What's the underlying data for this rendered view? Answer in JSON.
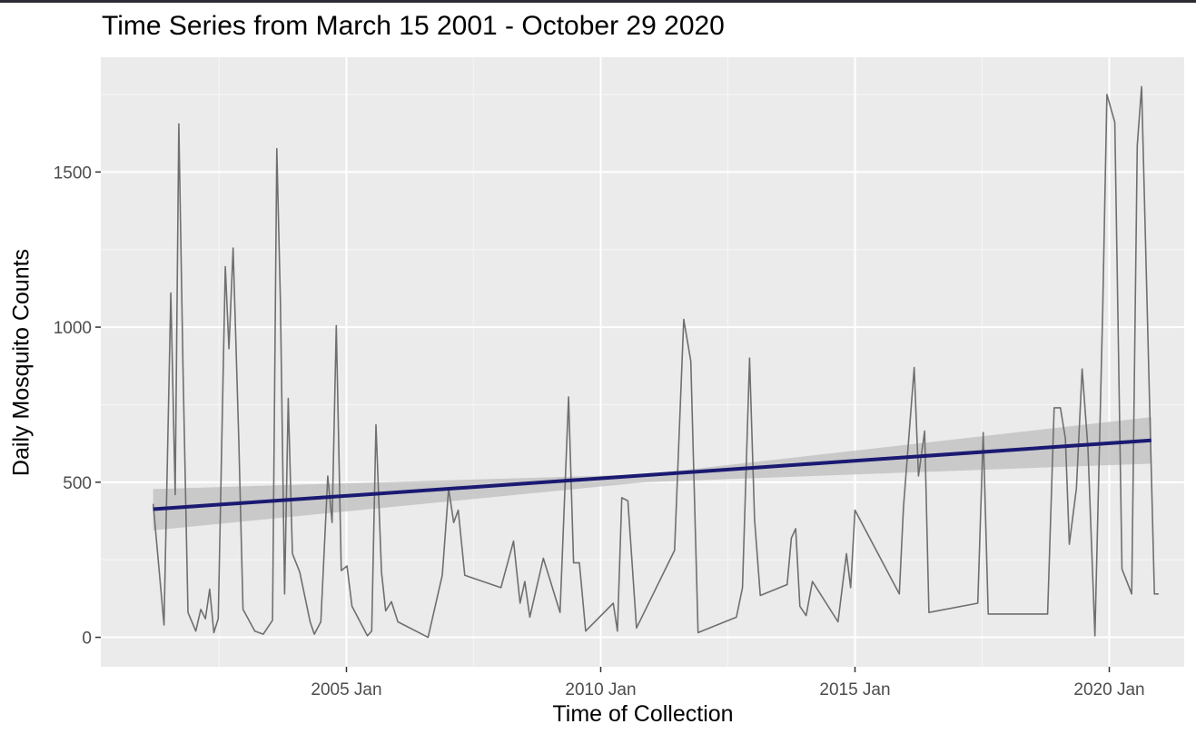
{
  "chart_data": {
    "type": "line",
    "title": "Time Series from March 15 2001 - October 29 2020",
    "xlabel": "Time of Collection",
    "ylabel": "Daily Mosquito Counts",
    "x_axis_type": "date",
    "x_range": [
      "2000-03-04",
      "2021-06-22"
    ],
    "ylim": [
      -95,
      1870
    ],
    "x_ticks": [
      {
        "date": "2005-01-01",
        "label": "2005 Jan"
      },
      {
        "date": "2010-01-01",
        "label": "2010 Jan"
      },
      {
        "date": "2015-01-01",
        "label": "2015 Jan"
      },
      {
        "date": "2020-01-01",
        "label": "2020 Jan"
      }
    ],
    "x_minor_ticks": [
      "2002-07-01",
      "2007-07-01",
      "2012-07-01",
      "2017-07-01"
    ],
    "y_ticks": [
      0,
      500,
      1000,
      1500
    ],
    "y_minor_ticks": [
      250,
      750,
      1250,
      1750
    ],
    "grid": true,
    "background": "#ebebeb",
    "series": [
      {
        "style": "raw",
        "color": "#6f6f6f",
        "points": [
          [
            "2001-03-15",
            430
          ],
          [
            "2001-06-01",
            40
          ],
          [
            "2001-07-20",
            1110
          ],
          [
            "2001-08-20",
            460
          ],
          [
            "2001-09-15",
            1655
          ],
          [
            "2001-10-15",
            870
          ],
          [
            "2001-11-20",
            80
          ],
          [
            "2002-01-15",
            20
          ],
          [
            "2002-02-20",
            90
          ],
          [
            "2002-03-25",
            60
          ],
          [
            "2002-04-25",
            155
          ],
          [
            "2002-05-25",
            15
          ],
          [
            "2002-06-25",
            60
          ],
          [
            "2002-08-15",
            1195
          ],
          [
            "2002-09-10",
            930
          ],
          [
            "2002-10-10",
            1255
          ],
          [
            "2002-11-20",
            630
          ],
          [
            "2002-12-20",
            90
          ],
          [
            "2003-03-15",
            20
          ],
          [
            "2003-05-15",
            10
          ],
          [
            "2003-07-20",
            55
          ],
          [
            "2003-08-20",
            1575
          ],
          [
            "2003-09-15",
            1080
          ],
          [
            "2003-10-15",
            140
          ],
          [
            "2003-11-10",
            770
          ],
          [
            "2003-12-10",
            270
          ],
          [
            "2004-02-01",
            210
          ],
          [
            "2004-04-15",
            50
          ],
          [
            "2004-05-15",
            10
          ],
          [
            "2004-07-01",
            50
          ],
          [
            "2004-08-20",
            520
          ],
          [
            "2004-09-20",
            370
          ],
          [
            "2004-10-20",
            1005
          ],
          [
            "2004-11-25",
            215
          ],
          [
            "2005-01-05",
            230
          ],
          [
            "2005-02-10",
            100
          ],
          [
            "2005-06-01",
            5
          ],
          [
            "2005-07-01",
            20
          ],
          [
            "2005-08-01",
            685
          ],
          [
            "2005-09-10",
            210
          ],
          [
            "2005-10-10",
            85
          ],
          [
            "2005-11-20",
            115
          ],
          [
            "2006-01-05",
            50
          ],
          [
            "2006-08-10",
            0
          ],
          [
            "2006-11-20",
            200
          ],
          [
            "2007-01-05",
            480
          ],
          [
            "2007-02-10",
            370
          ],
          [
            "2007-03-15",
            410
          ],
          [
            "2007-05-01",
            200
          ],
          [
            "2008-01-15",
            160
          ],
          [
            "2008-04-15",
            310
          ],
          [
            "2008-06-01",
            110
          ],
          [
            "2008-07-05",
            180
          ],
          [
            "2008-08-10",
            65
          ],
          [
            "2008-11-15",
            255
          ],
          [
            "2009-03-15",
            80
          ],
          [
            "2009-05-15",
            775
          ],
          [
            "2009-06-20",
            240
          ],
          [
            "2009-08-01",
            240
          ],
          [
            "2009-09-15",
            20
          ],
          [
            "2010-04-01",
            110
          ],
          [
            "2010-05-01",
            20
          ],
          [
            "2010-06-01",
            450
          ],
          [
            "2010-07-15",
            440
          ],
          [
            "2010-09-15",
            30
          ],
          [
            "2011-06-15",
            280
          ],
          [
            "2011-08-20",
            1025
          ],
          [
            "2011-10-10",
            890
          ],
          [
            "2011-12-01",
            15
          ],
          [
            "2012-09-01",
            65
          ],
          [
            "2012-10-15",
            160
          ],
          [
            "2012-12-05",
            900
          ],
          [
            "2013-01-10",
            380
          ],
          [
            "2013-02-20",
            135
          ],
          [
            "2013-09-01",
            170
          ],
          [
            "2013-10-01",
            320
          ],
          [
            "2013-11-01",
            350
          ],
          [
            "2013-12-01",
            100
          ],
          [
            "2014-01-15",
            70
          ],
          [
            "2014-03-01",
            180
          ],
          [
            "2014-09-01",
            50
          ],
          [
            "2014-11-01",
            270
          ],
          [
            "2014-12-01",
            160
          ],
          [
            "2015-01-01",
            410
          ],
          [
            "2015-11-15",
            140
          ],
          [
            "2015-12-15",
            420
          ],
          [
            "2016-03-01",
            870
          ],
          [
            "2016-04-01",
            520
          ],
          [
            "2016-05-15",
            665
          ],
          [
            "2016-06-15",
            80
          ],
          [
            "2017-06-01",
            110
          ],
          [
            "2017-07-10",
            660
          ],
          [
            "2017-08-15",
            75
          ],
          [
            "2018-10-15",
            75
          ],
          [
            "2018-12-01",
            740
          ],
          [
            "2019-01-15",
            740
          ],
          [
            "2019-02-20",
            640
          ],
          [
            "2019-03-20",
            300
          ],
          [
            "2019-05-10",
            480
          ],
          [
            "2019-06-20",
            865
          ],
          [
            "2019-08-01",
            610
          ],
          [
            "2019-09-20",
            5
          ],
          [
            "2019-11-15",
            1060
          ],
          [
            "2019-12-15",
            1750
          ],
          [
            "2020-02-10",
            1660
          ],
          [
            "2020-04-01",
            220
          ],
          [
            "2020-06-10",
            140
          ],
          [
            "2020-07-20",
            1585
          ],
          [
            "2020-08-20",
            1775
          ],
          [
            "2020-10-10",
            870
          ],
          [
            "2020-11-20",
            140
          ],
          [
            "2020-12-20",
            140
          ]
        ]
      },
      {
        "style": "trend",
        "color": "#1a1a72",
        "points": [
          [
            "2001-03-15",
            413
          ],
          [
            "2020-10-29",
            635
          ]
        ]
      }
    ],
    "confidence_band": {
      "color": "#bdbdbd",
      "lower": [
        [
          "2001-03-15",
          345
        ],
        [
          "2010-11-15",
          500
        ],
        [
          "2020-10-29",
          560
        ]
      ],
      "upper": [
        [
          "2001-03-15",
          478
        ],
        [
          "2010-11-15",
          525
        ],
        [
          "2020-10-29",
          710
        ]
      ]
    }
  }
}
